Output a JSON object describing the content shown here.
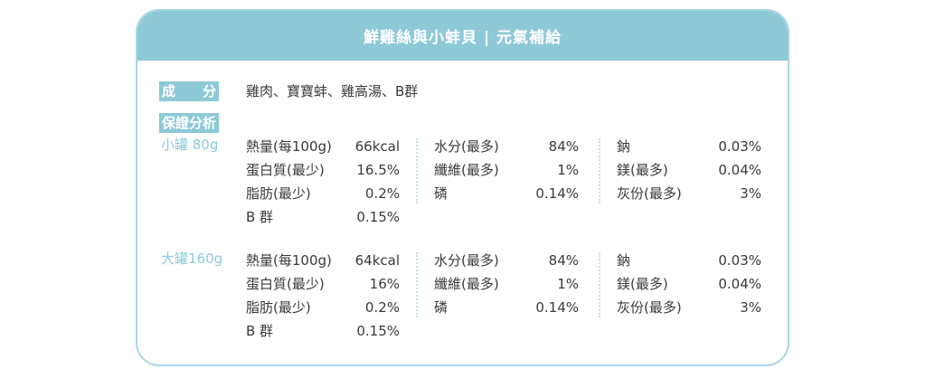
{
  "title": "鮮雞絲與小蚌貝 | 元氣補給",
  "ingredients": {
    "label": "成　　分",
    "value": "雞肉、寶寶蚌、雞高湯、B群"
  },
  "analysis_label": "保證分析",
  "variants": [
    {
      "name": "小罐 80g",
      "columns": [
        [
          {
            "k": "熱量(每100g)",
            "v": "66kcal"
          },
          {
            "k": "蛋白質(最少)",
            "v": "16.5%"
          },
          {
            "k": "脂肪(最少)",
            "v": "0.2%"
          },
          {
            "k": "B 群",
            "v": "0.15%"
          }
        ],
        [
          {
            "k": "水分(最多)",
            "v": "84%"
          },
          {
            "k": "纖維(最多)",
            "v": "1%"
          },
          {
            "k": "磷",
            "v": "0.14%"
          }
        ],
        [
          {
            "k": "鈉",
            "v": "0.03%"
          },
          {
            "k": "鎂(最多)",
            "v": "0.04%"
          },
          {
            "k": "灰份(最多)",
            "v": "3%"
          }
        ]
      ]
    },
    {
      "name": "大罐160g",
      "columns": [
        [
          {
            "k": "熱量(每100g)",
            "v": "64kcal"
          },
          {
            "k": "蛋白質(最少)",
            "v": "16%"
          },
          {
            "k": "脂肪(最少)",
            "v": "0.2%"
          },
          {
            "k": "B 群",
            "v": "0.15%"
          }
        ],
        [
          {
            "k": "水分(最多)",
            "v": "84%"
          },
          {
            "k": "纖維(最多)",
            "v": "1%"
          },
          {
            "k": "磷",
            "v": "0.14%"
          }
        ],
        [
          {
            "k": "鈉",
            "v": "0.03%"
          },
          {
            "k": "鎂(最多)",
            "v": "0.04%"
          },
          {
            "k": "灰份(最多)",
            "v": "3%"
          }
        ]
      ]
    }
  ]
}
